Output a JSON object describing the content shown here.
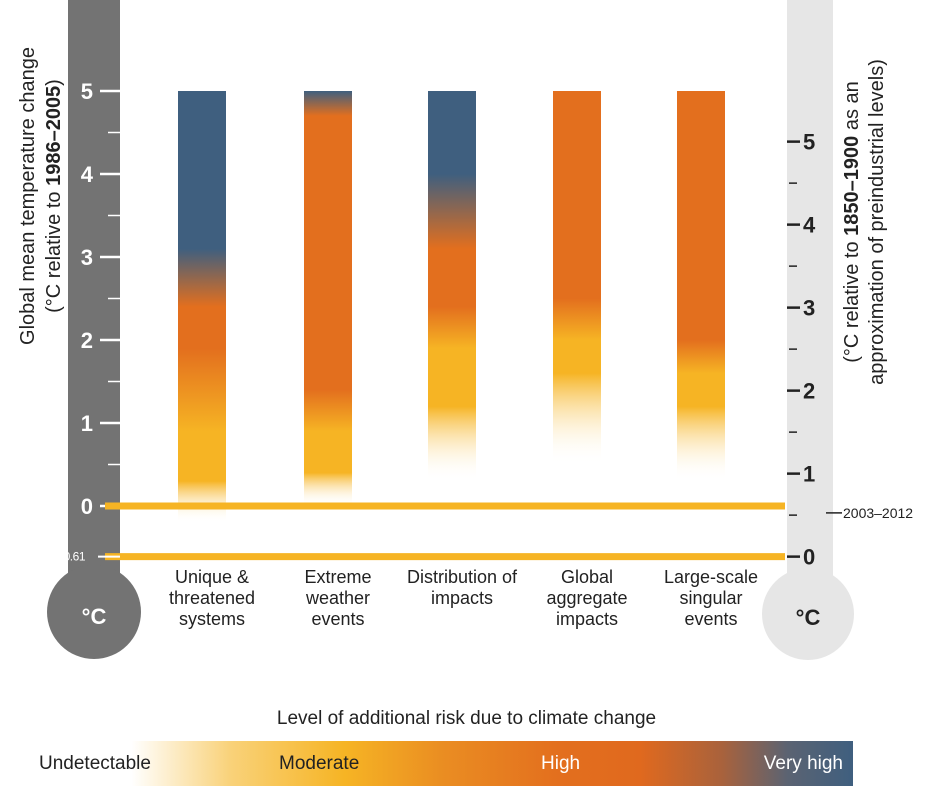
{
  "colors": {
    "undetectable": "#ffffff",
    "moderate": "#f6b424",
    "high": "#e36f1e",
    "very_high": "#3f5f7f",
    "baseline_line": "#f6b424",
    "left_thermometer": "#737373",
    "right_thermometer": "#e6e6e6"
  },
  "chart_data": {
    "type": "bar",
    "subtype": "risk-gradient-columns",
    "categories": [
      "Unique & threatened systems",
      "Extreme weather events",
      "Distribution of impacts",
      "Global aggregate impacts",
      "Large-scale singular events"
    ],
    "category_lines": [
      [
        "Unique &",
        "threatened",
        "systems"
      ],
      [
        "Extreme",
        "weather",
        "events"
      ],
      [
        "Distribution of",
        "impacts"
      ],
      [
        "Global",
        "aggregate",
        "impacts"
      ],
      [
        "Large-scale",
        "singular",
        "events"
      ]
    ],
    "left_axis": {
      "label_line1": "Global mean temperature change",
      "label_line2_pre": "(°C relative to ",
      "label_line2_bold": "1986–2005",
      "label_line2_post": ")",
      "ticks": [
        "0",
        "1",
        "2",
        "3",
        "4",
        "5"
      ],
      "extra_tick": "-0.61",
      "unit": "°C",
      "ylim": [
        -0.61,
        5.0
      ]
    },
    "right_axis": {
      "label_line1_pre": "(°C relative to ",
      "label_line1_bold": "1850–1900",
      "label_line1_post": " as an",
      "label_line2": "approximation of preindustrial levels)",
      "ticks": [
        "0",
        "1",
        "2",
        "3",
        "4",
        "5"
      ],
      "offset_from_left": 0.61,
      "unit": "°C"
    },
    "reference_lines": [
      {
        "value": 0
      },
      {
        "value": -0.61
      }
    ],
    "annotation": "2003–2012",
    "series": [
      {
        "stops": [
          [
            -0.2,
            "undetectable"
          ],
          [
            0.3,
            "moderate"
          ],
          [
            0.9,
            "moderate"
          ],
          [
            1.9,
            "high"
          ],
          [
            2.4,
            "high"
          ],
          [
            3.1,
            "very_high"
          ],
          [
            5.0,
            "very_high"
          ]
        ]
      },
      {
        "stops": [
          [
            0.0,
            "undetectable"
          ],
          [
            0.4,
            "moderate"
          ],
          [
            0.9,
            "moderate"
          ],
          [
            1.4,
            "high"
          ],
          [
            4.7,
            "high"
          ],
          [
            5.0,
            "very_high"
          ]
        ]
      },
      {
        "stops": [
          [
            0.3,
            "undetectable"
          ],
          [
            1.2,
            "moderate"
          ],
          [
            1.9,
            "moderate"
          ],
          [
            2.4,
            "high"
          ],
          [
            3.1,
            "high"
          ],
          [
            4.0,
            "very_high"
          ],
          [
            5.0,
            "very_high"
          ]
        ]
      },
      {
        "stops": [
          [
            0.5,
            "undetectable"
          ],
          [
            1.6,
            "moderate"
          ],
          [
            2.0,
            "moderate"
          ],
          [
            2.5,
            "high"
          ],
          [
            5.0,
            "high"
          ]
        ]
      },
      {
        "stops": [
          [
            0.3,
            "undetectable"
          ],
          [
            1.2,
            "moderate"
          ],
          [
            1.6,
            "moderate"
          ],
          [
            2.0,
            "high"
          ],
          [
            5.0,
            "high"
          ]
        ]
      }
    ]
  },
  "risk_scale": {
    "title": "Level of additional risk due to climate change",
    "levels": [
      "Undetectable",
      "Moderate",
      "High",
      "Very high"
    ]
  }
}
